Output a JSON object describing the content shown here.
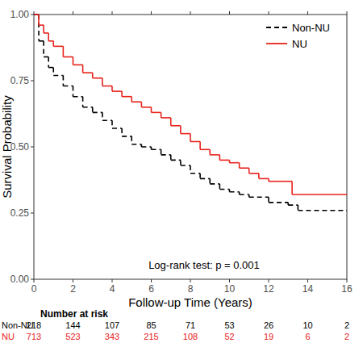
{
  "chart_data": {
    "type": "step",
    "x_label": "Follow-up Time (Years)",
    "y_label": "Survival Probability",
    "annotation": "Log-rank test: p = 0.001",
    "at_risk_title": "Number at risk",
    "xlim": [
      0,
      16
    ],
    "xticks": [
      0,
      2,
      4,
      6,
      8,
      10,
      12,
      14,
      16
    ],
    "ylim": [
      0,
      1
    ],
    "yticks": [
      {
        "value": 0,
        "label": "0.00"
      },
      {
        "value": 0.25,
        "label": "0.25"
      },
      {
        "value": 0.5,
        "label": "0.50"
      },
      {
        "value": 0.75,
        "label": "0.75"
      },
      {
        "value": 1,
        "label": "1.00"
      }
    ],
    "grid": false,
    "legend": "top-right",
    "series": [
      {
        "name": "Non-NU",
        "color": "#000000",
        "line_style": "dashed",
        "x": [
          0,
          0.25,
          0.5,
          0.75,
          1,
          1.5,
          2,
          2.5,
          3,
          3.5,
          4,
          4.5,
          5,
          5.5,
          6,
          6.5,
          7,
          7.5,
          8,
          8.5,
          9,
          9.5,
          10,
          10.5,
          11,
          12,
          13,
          13.5,
          16
        ],
        "values": [
          1,
          0.9,
          0.84,
          0.8,
          0.77,
          0.73,
          0.69,
          0.65,
          0.63,
          0.6,
          0.57,
          0.54,
          0.51,
          0.5,
          0.49,
          0.47,
          0.45,
          0.43,
          0.4,
          0.38,
          0.36,
          0.34,
          0.33,
          0.32,
          0.31,
          0.29,
          0.28,
          0.26,
          0.26
        ],
        "at_risk": [
          218,
          144,
          107,
          85,
          71,
          53,
          26,
          10,
          2
        ]
      },
      {
        "name": "NU",
        "color": "#e8221c",
        "line_style": "solid",
        "x": [
          0,
          0.25,
          0.5,
          0.75,
          1,
          1.5,
          2,
          2.5,
          3,
          3.5,
          4,
          4.5,
          5,
          5.5,
          6,
          6.5,
          7,
          7.5,
          8,
          8.5,
          9,
          9.5,
          10,
          10.5,
          11,
          11.5,
          12,
          13.2,
          16
        ],
        "values": [
          1,
          0.96,
          0.93,
          0.9,
          0.88,
          0.84,
          0.81,
          0.78,
          0.76,
          0.73,
          0.71,
          0.69,
          0.67,
          0.65,
          0.63,
          0.61,
          0.58,
          0.55,
          0.52,
          0.49,
          0.47,
          0.45,
          0.44,
          0.42,
          0.4,
          0.38,
          0.37,
          0.32,
          0.32
        ],
        "at_risk": [
          713,
          523,
          343,
          215,
          108,
          52,
          19,
          6,
          2
        ]
      }
    ]
  }
}
